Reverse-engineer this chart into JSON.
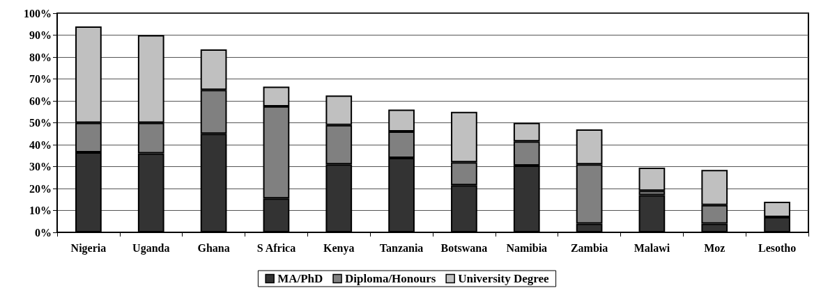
{
  "chart_data": {
    "type": "bar",
    "stacked": true,
    "categories": [
      "Nigeria",
      "Uganda",
      "Ghana",
      "S Africa",
      "Kenya",
      "Tanzania",
      "Botswana",
      "Namibia",
      "Zambia",
      "Malawi",
      "Moz",
      "Lesotho"
    ],
    "series": [
      {
        "name": "MA/PhD",
        "color": "#333333",
        "values": [
          36.5,
          36,
          45,
          15.5,
          31,
          34,
          21.5,
          30.5,
          4,
          17,
          4,
          7
        ]
      },
      {
        "name": "Diploma/Honours",
        "color": "#808080",
        "values": [
          13.5,
          14,
          20,
          42,
          18,
          12,
          10.5,
          11,
          27,
          2,
          8.5,
          null
        ]
      },
      {
        "name": "University Degree",
        "color": "#c0c0c0",
        "values": [
          44,
          40,
          18.5,
          9,
          13.5,
          10,
          23,
          8.5,
          16,
          10.5,
          16,
          7
        ]
      }
    ],
    "ylim": [
      0,
      100
    ],
    "yticks": [
      {
        "value": 0,
        "label": "0%"
      },
      {
        "value": 10,
        "label": "10%"
      },
      {
        "value": 20,
        "label": "20%"
      },
      {
        "value": 30,
        "label": "30%"
      },
      {
        "value": 40,
        "label": "40%"
      },
      {
        "value": 50,
        "label": "50%"
      },
      {
        "value": 60,
        "label": "60%"
      },
      {
        "value": 70,
        "label": "70%"
      },
      {
        "value": 80,
        "label": "80%"
      },
      {
        "value": 90,
        "label": "90%"
      },
      {
        "value": 100,
        "label": "100%"
      }
    ],
    "grid": "y",
    "legend": "bottom"
  }
}
